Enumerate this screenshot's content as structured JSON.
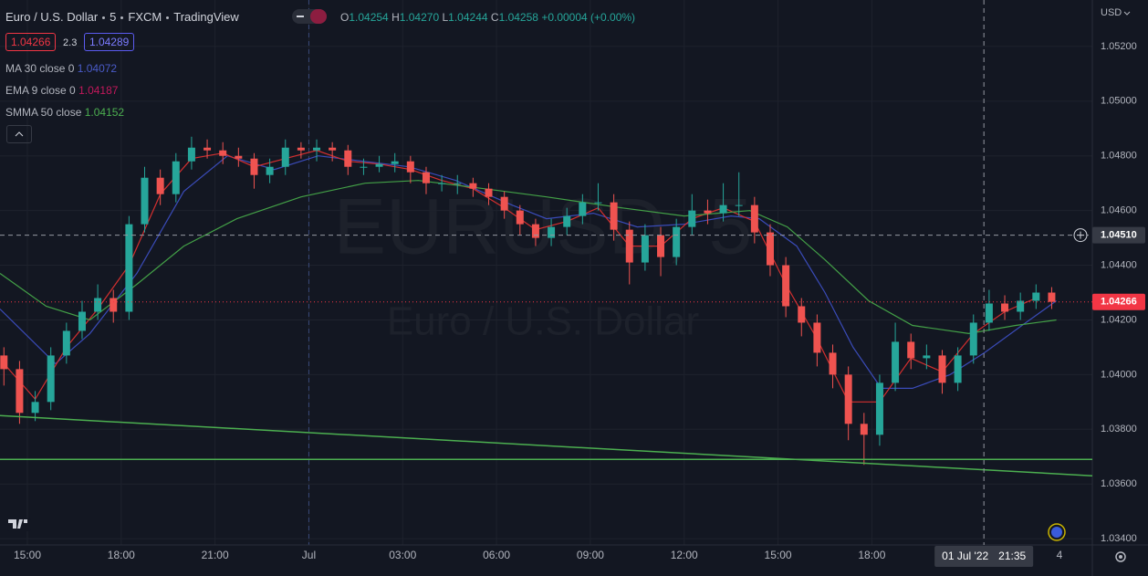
{
  "header": {
    "symbol": "Euro / U.S. Dollar",
    "interval": "5",
    "exchange": "FXCM",
    "source": "TradingView",
    "ohlc": [
      {
        "label": "O",
        "value": "1.04254"
      },
      {
        "label": "H",
        "value": "1.04270"
      },
      {
        "label": "L",
        "value": "1.04244"
      },
      {
        "label": "C",
        "value": "1.04258"
      }
    ],
    "change": "+0.00004 (+0.00%)",
    "bid": "1.04266",
    "spread": "2.3",
    "ask": "1.04289",
    "currency": "USD",
    "watermark_ticker": "EURUSD, 5",
    "watermark_name": "Euro / U.S. Dollar",
    "bottom_right": "4"
  },
  "chart_data": {
    "type": "candlestick",
    "grid": true,
    "up_color": "#26a69a",
    "down_color": "#ef5350",
    "xlim": [
      14.125,
      49.05
    ],
    "ylim": [
      1.03377,
      1.0537
    ],
    "xticks": [
      {
        "value": 15,
        "label": "15:00"
      },
      {
        "value": 18,
        "label": "18:00"
      },
      {
        "value": 21,
        "label": "21:00"
      },
      {
        "value": 24,
        "label": "Jul"
      },
      {
        "value": 27,
        "label": "03:00"
      },
      {
        "value": 30,
        "label": "06:00"
      },
      {
        "value": 33,
        "label": "09:00"
      },
      {
        "value": 36,
        "label": "12:00"
      },
      {
        "value": 39,
        "label": "15:00"
      },
      {
        "value": 42,
        "label": "18:00"
      }
    ],
    "yticks": [
      {
        "value": 1.052,
        "label": "1.05200"
      },
      {
        "value": 1.05,
        "label": "1.05000"
      },
      {
        "value": 1.048,
        "label": "1.04800"
      },
      {
        "value": 1.046,
        "label": "1.04600"
      },
      {
        "value": 1.044,
        "label": "1.04400"
      },
      {
        "value": 1.042,
        "label": "1.04200"
      },
      {
        "value": 1.04,
        "label": "1.04000"
      },
      {
        "value": 1.038,
        "label": "1.03800"
      },
      {
        "value": 1.036,
        "label": "1.03600"
      },
      {
        "value": 1.034,
        "label": "1.03400"
      }
    ],
    "session_breaks": [
      24
    ],
    "x": [
      14.25,
      14.75,
      15.25,
      15.75,
      16.25,
      16.75,
      17.25,
      17.75,
      18.25,
      18.75,
      19.25,
      19.75,
      20.25,
      20.75,
      21.25,
      21.75,
      22.25,
      22.75,
      23.25,
      23.75,
      24.25,
      24.75,
      25.25,
      25.75,
      26.25,
      26.75,
      27.25,
      27.75,
      28.25,
      28.75,
      29.25,
      29.75,
      30.25,
      30.75,
      31.25,
      31.75,
      32.25,
      32.75,
      33.25,
      33.75,
      34.25,
      34.75,
      35.25,
      35.75,
      36.25,
      36.75,
      37.25,
      37.75,
      38.25,
      38.75,
      39.25,
      39.75,
      40.25,
      40.75,
      41.25,
      41.75,
      42.25,
      42.75,
      43.25,
      43.75,
      44.25,
      44.75,
      45.25,
      45.75,
      46.25,
      46.75,
      47.25,
      47.75
    ],
    "open": [
      1.0407,
      1.0402,
      1.0386,
      1.039,
      1.0407,
      1.0416,
      1.0423,
      1.0428,
      1.0423,
      1.0455,
      1.0472,
      1.0466,
      1.0478,
      1.0483,
      1.0482,
      1.048,
      1.0479,
      1.0473,
      1.0476,
      1.0483,
      1.0482,
      1.0483,
      1.0482,
      1.0476,
      1.0476,
      1.0477,
      1.0478,
      1.0474,
      1.047,
      1.047,
      1.047,
      1.0468,
      1.0465,
      1.046,
      1.0455,
      1.045,
      1.0454,
      1.0458,
      1.0463,
      1.0463,
      1.0453,
      1.0441,
      1.0451,
      1.0443,
      1.0454,
      1.046,
      1.0459,
      1.0462,
      1.0462,
      1.0452,
      1.044,
      1.0425,
      1.0419,
      1.0408,
      1.04,
      1.0382,
      1.0378,
      1.0397,
      1.0412,
      1.0406,
      1.0407,
      1.0397,
      1.0407,
      1.0419,
      1.0426,
      1.0423,
      1.0427,
      1.043
    ],
    "high": [
      1.041,
      1.0405,
      1.0394,
      1.041,
      1.0419,
      1.0427,
      1.0433,
      1.0431,
      1.0458,
      1.0476,
      1.0475,
      1.0481,
      1.0487,
      1.0486,
      1.0485,
      1.0483,
      1.0481,
      1.0479,
      1.0486,
      1.0485,
      1.0486,
      1.0485,
      1.0484,
      1.0479,
      1.048,
      1.0481,
      1.048,
      1.0476,
      1.0473,
      1.0473,
      1.0472,
      1.047,
      1.0467,
      1.0462,
      1.0457,
      1.0457,
      1.0461,
      1.0466,
      1.047,
      1.0466,
      1.0456,
      1.0455,
      1.0454,
      1.0457,
      1.0466,
      1.0464,
      1.047,
      1.0474,
      1.0465,
      1.0455,
      1.0443,
      1.0428,
      1.0422,
      1.0411,
      1.0403,
      1.0386,
      1.04,
      1.0419,
      1.0415,
      1.0411,
      1.0409,
      1.041,
      1.0422,
      1.0431,
      1.0429,
      1.043,
      1.0433,
      1.0432
    ],
    "low": [
      1.0396,
      1.0382,
      1.0383,
      1.0387,
      1.0404,
      1.0413,
      1.042,
      1.0419,
      1.042,
      1.0452,
      1.0462,
      1.0463,
      1.0475,
      1.0479,
      1.0477,
      1.0476,
      1.0468,
      1.047,
      1.0473,
      1.0479,
      1.0478,
      1.0478,
      1.0473,
      1.0473,
      1.0474,
      1.0474,
      1.047,
      1.0466,
      1.0467,
      1.0466,
      1.0465,
      1.0462,
      1.0457,
      1.0451,
      1.0447,
      1.0447,
      1.0451,
      1.0455,
      1.046,
      1.0449,
      1.0433,
      1.0438,
      1.0436,
      1.044,
      1.0451,
      1.0455,
      1.0456,
      1.0458,
      1.0448,
      1.0436,
      1.0421,
      1.0414,
      1.0403,
      1.0395,
      1.0376,
      1.0367,
      1.0374,
      1.0394,
      1.0402,
      1.0402,
      1.0393,
      1.0394,
      1.0404,
      1.0416,
      1.042,
      1.042,
      1.0424,
      1.0424
    ],
    "close": [
      1.0402,
      1.0386,
      1.039,
      1.0407,
      1.0416,
      1.0423,
      1.0428,
      1.0423,
      1.0455,
      1.0472,
      1.0466,
      1.0478,
      1.0483,
      1.0482,
      1.048,
      1.0479,
      1.0473,
      1.0476,
      1.0483,
      1.0482,
      1.0483,
      1.0482,
      1.0476,
      1.0476,
      1.0477,
      1.0478,
      1.0474,
      1.047,
      1.047,
      1.047,
      1.0468,
      1.0465,
      1.046,
      1.0455,
      1.045,
      1.0454,
      1.0458,
      1.0463,
      1.0463,
      1.0453,
      1.0441,
      1.0451,
      1.0443,
      1.0454,
      1.046,
      1.0459,
      1.0462,
      1.0462,
      1.0452,
      1.044,
      1.0425,
      1.0419,
      1.0408,
      1.04,
      1.0382,
      1.0378,
      1.0397,
      1.0412,
      1.0406,
      1.0407,
      1.0397,
      1.0407,
      1.0419,
      1.0426,
      1.0423,
      1.0427,
      1.043,
      1.04266
    ],
    "series": [
      {
        "name": "MA 30 close 0",
        "legend_value": "1.04072",
        "color": "#3a4bb8",
        "x": [
          14.125,
          15.9,
          17,
          18.5,
          20,
          21.4,
          22.9,
          24.3,
          27.2,
          28.7,
          30.5,
          31.6,
          33.1,
          34.5,
          36,
          37.5,
          38.4,
          39.6,
          40.5,
          41.4,
          42.3,
          43.3,
          44.5,
          45.6,
          46.8,
          47.9
        ],
        "values": [
          1.0424,
          1.0404,
          1.0415,
          1.0437,
          1.0467,
          1.048,
          1.0475,
          1.048,
          1.0476,
          1.0471,
          1.0462,
          1.0457,
          1.0459,
          1.0454,
          1.0455,
          1.0458,
          1.0457,
          1.0447,
          1.043,
          1.041,
          1.0395,
          1.0395,
          1.04,
          1.0408,
          1.0418,
          1.0427
        ]
      },
      {
        "name": "EMA 9 close 0",
        "legend_value": "1.04187",
        "color": "#d32f2f",
        "x": [
          14.25,
          15.25,
          16.25,
          17.25,
          18.25,
          19.25,
          20.25,
          21.25,
          22.25,
          23.25,
          24.25,
          25.25,
          26.25,
          27.25,
          28.25,
          29.25,
          30.25,
          31.25,
          32.25,
          33.25,
          34.25,
          35.25,
          36.25,
          37.25,
          38.25,
          39.25,
          40.25,
          41.25,
          42.25,
          43.25,
          44.25,
          45.25,
          46.25,
          47.25
        ],
        "values": [
          1.0404,
          1.0391,
          1.041,
          1.0424,
          1.044,
          1.0466,
          1.0479,
          1.0481,
          1.0476,
          1.0479,
          1.0482,
          1.0478,
          1.0477,
          1.0475,
          1.0471,
          1.0468,
          1.0461,
          1.0453,
          1.0456,
          1.0461,
          1.0447,
          1.0447,
          1.0457,
          1.0461,
          1.0456,
          1.0433,
          1.0413,
          1.039,
          1.039,
          1.0406,
          1.0401,
          1.0415,
          1.0423,
          1.0428
        ]
      },
      {
        "name": "SMMA 50 close",
        "legend_value": "1.04152",
        "color": "#43a047",
        "x": [
          14.125,
          15.6,
          17,
          18.5,
          20,
          21.7,
          23.75,
          25.8,
          27.5,
          29.6,
          31.6,
          34,
          36,
          38.1,
          39.3,
          40.5,
          41.9,
          43.3,
          45.1,
          46.6,
          47.9
        ],
        "values": [
          1.0437,
          1.0425,
          1.042,
          1.0433,
          1.0447,
          1.0457,
          1.0465,
          1.047,
          1.0471,
          1.0468,
          1.0465,
          1.0461,
          1.0458,
          1.046,
          1.0454,
          1.0442,
          1.0427,
          1.0418,
          1.0415,
          1.0418,
          1.042
        ]
      }
    ],
    "trend_lines": [
      {
        "color": "#4caf50",
        "x": [
          14.125,
          49.05
        ],
        "y": [
          1.0385,
          1.0363
        ]
      },
      {
        "color": "#4caf50",
        "x": [
          14.125,
          49.05
        ],
        "y": [
          1.0369,
          1.0369
        ]
      }
    ],
    "last_price": {
      "value": 1.04266,
      "label": "1.04266",
      "color": "#f23645"
    },
    "crosshair": {
      "x": 45.583,
      "y": 1.0451,
      "y_label": "1.04510",
      "x_label": "01 Jul '22",
      "x_time": "21:35"
    }
  }
}
